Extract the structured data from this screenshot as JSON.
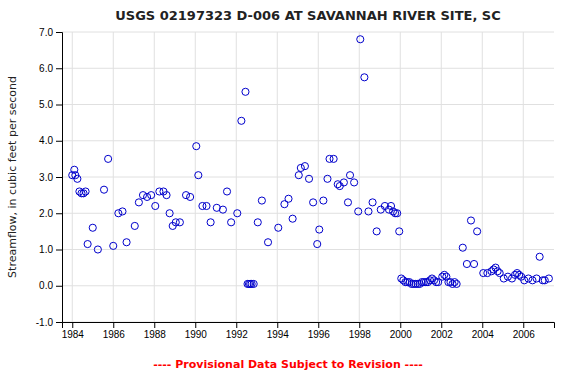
{
  "chart_data": {
    "type": "scatter",
    "title": "USGS 02197323 D-006 AT SAVANNAH RIVER SITE, SC",
    "ylabel": "Streamflow, in cubic feet per second",
    "annotations": [
      {
        "text": "---- Provisional Data Subject to Revision ----",
        "color": "#FF0000"
      }
    ],
    "color": "#0000CC",
    "marker": "circle",
    "grid": true,
    "xlim": [
      1983.5,
      2007.5
    ],
    "ylim": [
      -1.0,
      7.0
    ],
    "xticks": [
      1984,
      1986,
      1988,
      1990,
      1992,
      1994,
      1996,
      1998,
      2000,
      2002,
      2004,
      2006
    ],
    "yticks": [
      {
        "value": -1.0,
        "label": "-1.0"
      },
      {
        "value": 0.0,
        "label": "0.0"
      },
      {
        "value": 1.0,
        "label": "1.0"
      },
      {
        "value": 2.0,
        "label": "2.0"
      },
      {
        "value": 3.0,
        "label": "3.0"
      },
      {
        "value": 4.0,
        "label": "4.0"
      },
      {
        "value": 5.0,
        "label": "5.0"
      },
      {
        "value": 6.0,
        "label": "6.0"
      },
      {
        "value": 7.0,
        "label": "7.0"
      }
    ],
    "x": [
      1984.0,
      1984.1,
      1984.15,
      1984.25,
      1984.35,
      1984.45,
      1984.55,
      1984.65,
      1984.75,
      1985.0,
      1985.25,
      1985.55,
      1985.75,
      1986.0,
      1986.25,
      1986.45,
      1986.65,
      1987.05,
      1987.25,
      1987.45,
      1987.65,
      1987.85,
      1988.05,
      1988.25,
      1988.45,
      1988.6,
      1988.75,
      1988.9,
      1989.05,
      1989.25,
      1989.55,
      1989.75,
      1990.05,
      1990.15,
      1990.35,
      1990.55,
      1990.75,
      1991.05,
      1991.35,
      1991.55,
      1991.75,
      1992.05,
      1992.25,
      1992.45,
      1992.55,
      1992.62,
      1992.68,
      1992.75,
      1992.85,
      1993.05,
      1993.25,
      1993.55,
      1994.05,
      1994.35,
      1994.55,
      1994.75,
      1995.05,
      1995.15,
      1995.35,
      1995.55,
      1995.75,
      1995.95,
      1996.05,
      1996.25,
      1996.45,
      1996.55,
      1996.75,
      1996.95,
      1997.05,
      1997.25,
      1997.45,
      1997.55,
      1997.75,
      1997.95,
      1998.05,
      1998.25,
      1998.45,
      1998.65,
      1998.85,
      1999.05,
      1999.25,
      1999.45,
      1999.55,
      1999.65,
      1999.75,
      1999.85,
      1999.95,
      2000.05,
      2000.15,
      2000.25,
      2000.35,
      2000.45,
      2000.55,
      2000.65,
      2000.75,
      2000.85,
      2000.95,
      2001.05,
      2001.15,
      2001.25,
      2001.35,
      2001.45,
      2001.55,
      2001.65,
      2001.75,
      2001.85,
      2002.05,
      2002.15,
      2002.25,
      2002.35,
      2002.45,
      2002.55,
      2002.65,
      2002.75,
      2003.05,
      2003.25,
      2003.45,
      2003.6,
      2003.75,
      2004.05,
      2004.25,
      2004.45,
      2004.55,
      2004.65,
      2004.75,
      2004.85,
      2005.05,
      2005.25,
      2005.45,
      2005.6,
      2005.7,
      2005.8,
      2005.9,
      2006.05,
      2006.25,
      2006.45,
      2006.65,
      2006.8,
      2006.95,
      2007.05,
      2007.25
    ],
    "values": [
      3.05,
      3.2,
      3.05,
      2.95,
      2.6,
      2.55,
      2.55,
      2.6,
      1.15,
      1.6,
      1.0,
      2.65,
      3.5,
      1.1,
      2.0,
      2.05,
      1.2,
      1.65,
      2.3,
      2.5,
      2.45,
      2.5,
      2.2,
      2.6,
      2.6,
      2.5,
      2.0,
      1.65,
      1.75,
      1.75,
      2.5,
      2.45,
      3.85,
      3.05,
      2.2,
      2.2,
      1.75,
      2.15,
      2.1,
      2.6,
      1.75,
      2.0,
      4.55,
      5.35,
      0.05,
      0.05,
      0.05,
      0.05,
      0.05,
      1.75,
      2.35,
      1.2,
      1.6,
      2.25,
      2.4,
      1.85,
      3.05,
      3.25,
      3.3,
      2.95,
      2.3,
      1.15,
      1.55,
      2.35,
      2.95,
      3.5,
      3.5,
      2.8,
      2.75,
      2.85,
      2.3,
      3.05,
      2.85,
      2.05,
      6.8,
      5.75,
      2.05,
      2.3,
      1.5,
      2.1,
      2.2,
      2.1,
      2.2,
      2.05,
      2.0,
      2.0,
      1.5,
      0.2,
      0.15,
      0.1,
      0.1,
      0.1,
      0.05,
      0.05,
      0.05,
      0.05,
      0.05,
      0.1,
      0.1,
      0.1,
      0.1,
      0.15,
      0.2,
      0.15,
      0.1,
      0.1,
      0.25,
      0.3,
      0.25,
      0.1,
      0.1,
      0.05,
      0.1,
      0.05,
      1.05,
      0.6,
      1.8,
      0.6,
      1.5,
      0.35,
      0.35,
      0.4,
      0.45,
      0.5,
      0.4,
      0.35,
      0.2,
      0.25,
      0.2,
      0.3,
      0.35,
      0.3,
      0.25,
      0.15,
      0.2,
      0.15,
      0.2,
      0.8,
      0.15,
      0.15,
      0.2
    ]
  }
}
